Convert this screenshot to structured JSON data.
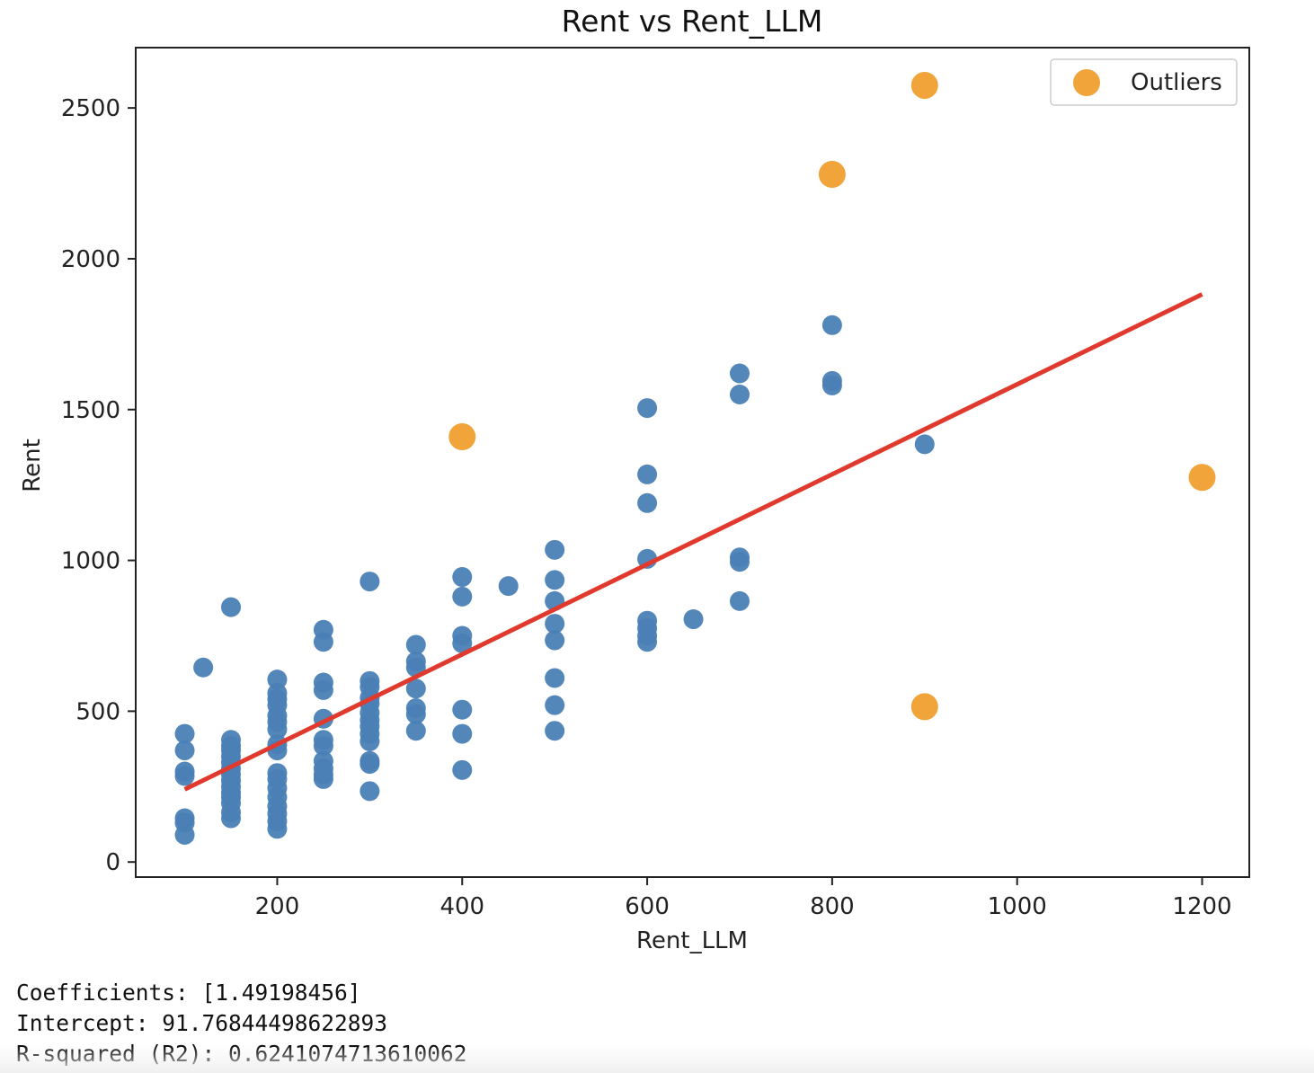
{
  "chart_data": {
    "type": "scatter",
    "title": "Rent vs Rent_LLM",
    "xlabel": "Rent_LLM",
    "ylabel": "Rent",
    "xlim": [
      47,
      1251
    ],
    "ylim": [
      -50,
      2700
    ],
    "xticks": [
      200,
      400,
      600,
      800,
      1000,
      1200
    ],
    "yticks": [
      0,
      500,
      1000,
      1500,
      2000,
      2500
    ],
    "grid": false,
    "legend": {
      "position": "top-right",
      "entries": [
        "Outliers"
      ]
    },
    "colors": {
      "points": "#4A7FB5",
      "outliers": "#F0A43A",
      "regression": "#E03A2E"
    },
    "series": [
      {
        "name": "",
        "points": [
          [
            100,
            425
          ],
          [
            100,
            370
          ],
          [
            100,
            300
          ],
          [
            100,
            285
          ],
          [
            100,
            145
          ],
          [
            100,
            130
          ],
          [
            100,
            90
          ],
          [
            120,
            645
          ],
          [
            150,
            845
          ],
          [
            150,
            405
          ],
          [
            150,
            385
          ],
          [
            150,
            370
          ],
          [
            150,
            350
          ],
          [
            150,
            330
          ],
          [
            150,
            310
          ],
          [
            150,
            290
          ],
          [
            150,
            270
          ],
          [
            150,
            250
          ],
          [
            150,
            230
          ],
          [
            150,
            215
          ],
          [
            150,
            195
          ],
          [
            150,
            165
          ],
          [
            150,
            145
          ],
          [
            200,
            605
          ],
          [
            200,
            560
          ],
          [
            200,
            540
          ],
          [
            200,
            520
          ],
          [
            200,
            485
          ],
          [
            200,
            465
          ],
          [
            200,
            440
          ],
          [
            200,
            390
          ],
          [
            200,
            370
          ],
          [
            200,
            295
          ],
          [
            200,
            275
          ],
          [
            200,
            245
          ],
          [
            200,
            215
          ],
          [
            200,
            185
          ],
          [
            200,
            160
          ],
          [
            200,
            135
          ],
          [
            200,
            110
          ],
          [
            250,
            770
          ],
          [
            250,
            730
          ],
          [
            250,
            595
          ],
          [
            250,
            570
          ],
          [
            250,
            475
          ],
          [
            250,
            405
          ],
          [
            250,
            385
          ],
          [
            250,
            335
          ],
          [
            250,
            310
          ],
          [
            250,
            290
          ],
          [
            250,
            275
          ],
          [
            300,
            930
          ],
          [
            300,
            600
          ],
          [
            300,
            580
          ],
          [
            300,
            545
          ],
          [
            300,
            525
          ],
          [
            300,
            495
          ],
          [
            300,
            470
          ],
          [
            300,
            450
          ],
          [
            300,
            425
          ],
          [
            300,
            400
          ],
          [
            300,
            335
          ],
          [
            300,
            325
          ],
          [
            300,
            235
          ],
          [
            350,
            720
          ],
          [
            350,
            665
          ],
          [
            350,
            645
          ],
          [
            350,
            575
          ],
          [
            350,
            510
          ],
          [
            350,
            490
          ],
          [
            350,
            435
          ],
          [
            400,
            945
          ],
          [
            400,
            880
          ],
          [
            400,
            750
          ],
          [
            400,
            725
          ],
          [
            400,
            505
          ],
          [
            400,
            425
          ],
          [
            400,
            305
          ],
          [
            450,
            915
          ],
          [
            500,
            1035
          ],
          [
            500,
            935
          ],
          [
            500,
            865
          ],
          [
            500,
            790
          ],
          [
            500,
            735
          ],
          [
            500,
            610
          ],
          [
            500,
            520
          ],
          [
            500,
            435
          ],
          [
            600,
            1505
          ],
          [
            600,
            1285
          ],
          [
            600,
            1190
          ],
          [
            600,
            1005
          ],
          [
            600,
            800
          ],
          [
            600,
            775
          ],
          [
            600,
            750
          ],
          [
            600,
            730
          ],
          [
            650,
            805
          ],
          [
            700,
            1620
          ],
          [
            700,
            1550
          ],
          [
            700,
            1010
          ],
          [
            700,
            995
          ],
          [
            700,
            865
          ],
          [
            800,
            1780
          ],
          [
            800,
            1595
          ],
          [
            800,
            1580
          ],
          [
            900,
            1385
          ]
        ]
      },
      {
        "name": "Outliers",
        "points": [
          [
            400,
            1410
          ],
          [
            800,
            2280
          ],
          [
            900,
            2575
          ],
          [
            900,
            515
          ],
          [
            1200,
            1275
          ]
        ]
      }
    ],
    "regression": {
      "x": [
        100,
        1200
      ],
      "slope": 1.49198456,
      "intercept": 91.76844498622893
    }
  },
  "output": {
    "coefficients": "Coefficients: [1.49198456]",
    "intercept": "Intercept: 91.76844498622893",
    "r2": "R-squared (R2): 0.6241074713610062"
  }
}
